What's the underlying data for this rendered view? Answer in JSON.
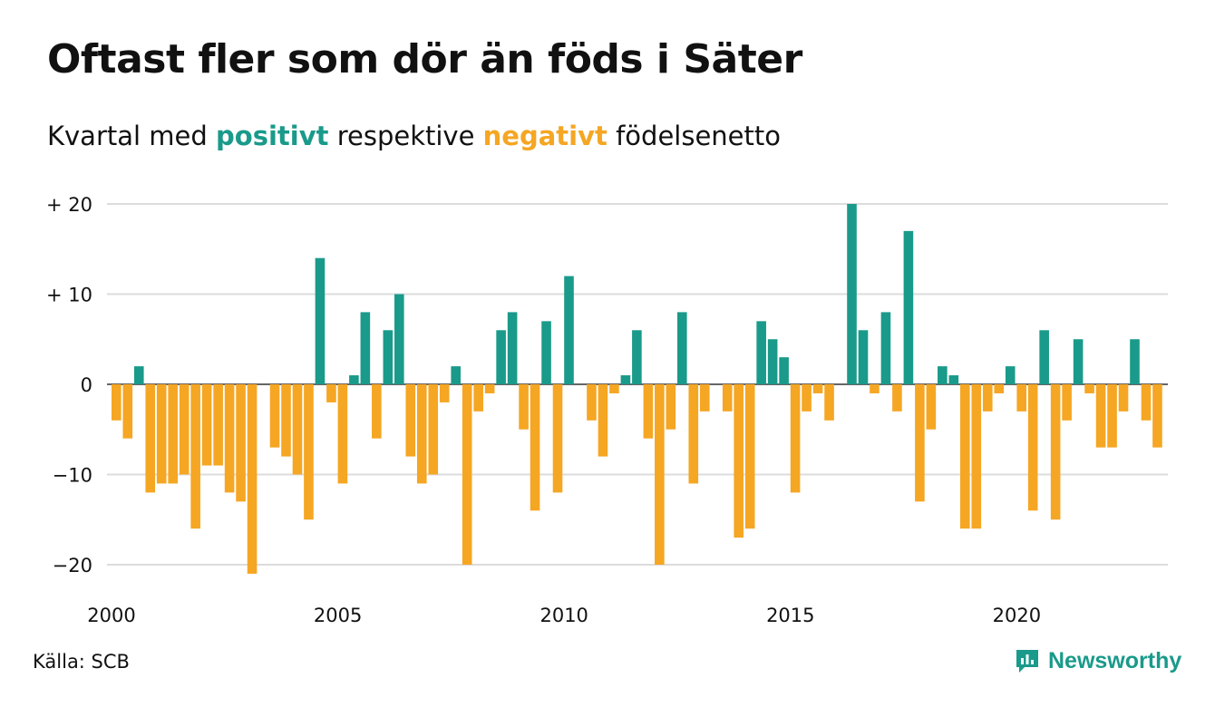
{
  "title": "Oftast fler som dör än föds i Säter",
  "subtitle": {
    "prefix": "Kvartal med ",
    "positive_word": "positivt",
    "middle": " respektive ",
    "negative_word": "negativt",
    "suffix": " födelsenetto"
  },
  "source": "Källa: SCB",
  "brand": "Newsworthy",
  "colors": {
    "positive": "#1a9a8a",
    "negative": "#f5a623",
    "grid": "#dcdcdc",
    "axis": "#333333"
  },
  "chart_data": {
    "type": "bar",
    "title": "Oftast fler som dör än föds i Säter",
    "subtitle": "Kvartal med positivt respektive negativt födelsenetto",
    "xlabel": "",
    "ylabel": "",
    "ylim": [
      -21,
      20
    ],
    "grid": true,
    "x_start": "2000-Q1",
    "x_ticks": [
      "2000",
      "2005",
      "2010",
      "2015",
      "2020"
    ],
    "y_ticks": [
      {
        "value": 20,
        "label": "+ 20"
      },
      {
        "value": 10,
        "label": "+ 10"
      },
      {
        "value": 0,
        "label": "0"
      },
      {
        "value": -10,
        "label": "−10"
      },
      {
        "value": -20,
        "label": "−20"
      }
    ],
    "values": [
      -4,
      -6,
      2,
      -12,
      -11,
      -11,
      -10,
      -16,
      -9,
      -9,
      -12,
      -13,
      -21,
      0,
      -7,
      -8,
      -10,
      -15,
      14,
      -2,
      -11,
      1,
      8,
      -6,
      6,
      10,
      -8,
      -11,
      -10,
      -2,
      2,
      -20,
      -3,
      -1,
      6,
      8,
      -5,
      -14,
      7,
      -12,
      12,
      0,
      -4,
      -8,
      -1,
      1,
      6,
      -6,
      -20,
      -5,
      8,
      -11,
      -3,
      0,
      -3,
      -17,
      -16,
      7,
      5,
      3,
      -12,
      -3,
      -1,
      -4,
      0,
      20,
      6,
      -1,
      8,
      -3,
      17,
      -13,
      -5,
      2,
      1,
      -16,
      -16,
      -3,
      -1,
      2,
      -3,
      -14,
      6,
      -15,
      -4,
      5,
      -1,
      -7,
      -7,
      -3,
      5,
      -4,
      -7
    ]
  }
}
